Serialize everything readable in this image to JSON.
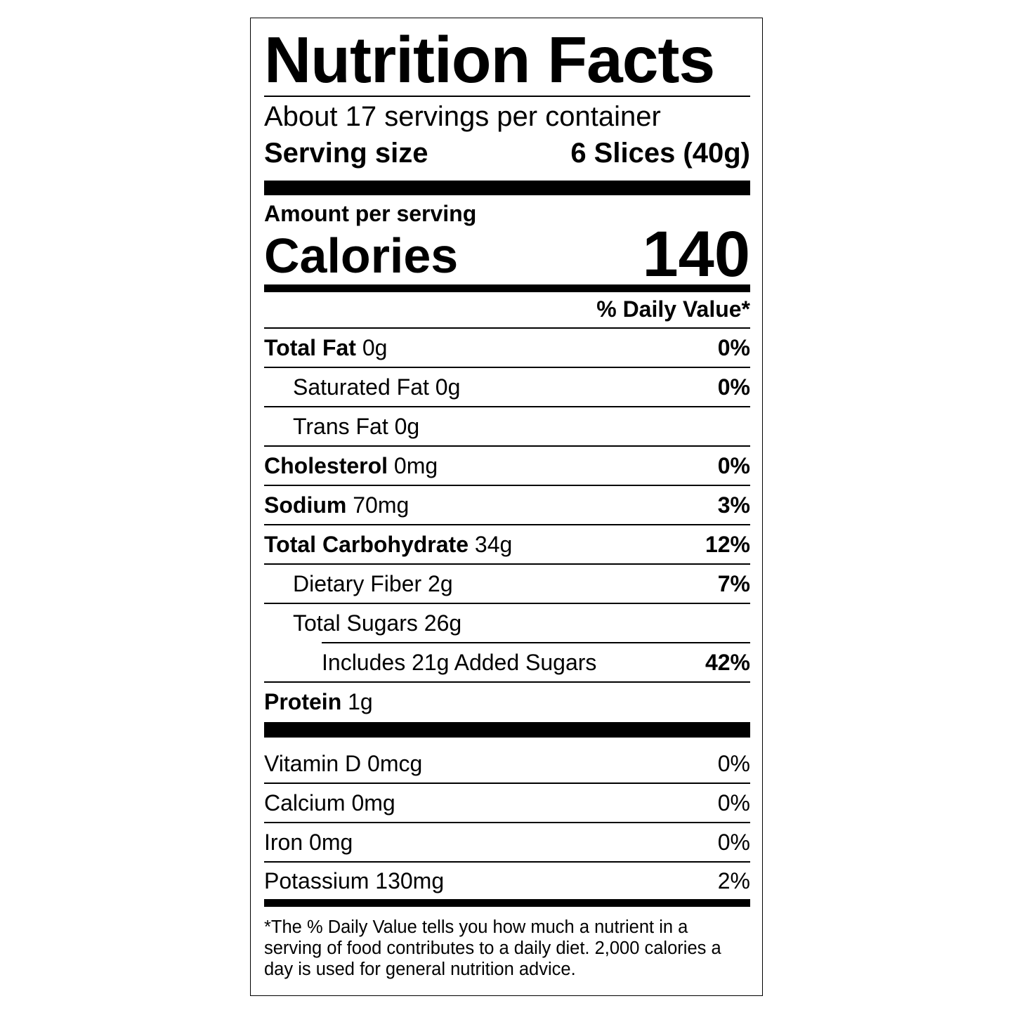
{
  "title": "Nutrition Facts",
  "servings_per_container": "About 17 servings per container",
  "serving_size_label": "Serving size",
  "serving_size_value": "6 Slices (40g)",
  "amount_per_serving": "Amount per serving",
  "calories_label": "Calories",
  "calories_value": "140",
  "daily_value_header": "% Daily Value*",
  "nutrients": [
    {
      "name": "Total Fat",
      "amount": "0g",
      "dv": "0%"
    },
    {
      "name": "Saturated Fat",
      "amount": "0g",
      "dv": "0%"
    },
    {
      "name": "Trans Fat",
      "amount": "0g",
      "dv": ""
    },
    {
      "name": "Cholesterol",
      "amount": "0mg",
      "dv": "0%"
    },
    {
      "name": "Sodium",
      "amount": "70mg",
      "dv": "3%"
    },
    {
      "name": "Total Carbohydrate",
      "amount": "34g",
      "dv": "12%"
    },
    {
      "name": "Dietary Fiber",
      "amount": "2g",
      "dv": "7%"
    },
    {
      "name": "Total Sugars",
      "amount": "26g",
      "dv": ""
    },
    {
      "name": "Includes 21g Added Sugars",
      "amount": "",
      "dv": "42%"
    },
    {
      "name": "Protein",
      "amount": "1g",
      "dv": ""
    }
  ],
  "vitamins": [
    {
      "name": "Vitamin D 0mcg",
      "dv": "0%"
    },
    {
      "name": "Calcium 0mg",
      "dv": "0%"
    },
    {
      "name": "Iron 0mg",
      "dv": "0%"
    },
    {
      "name": "Potassium 130mg",
      "dv": "2%"
    }
  ],
  "footnote": "*The % Daily Value tells you how much a nutrient in a serving of food contributes to a daily diet. 2,000 calories a day is used for general nutrition advice."
}
